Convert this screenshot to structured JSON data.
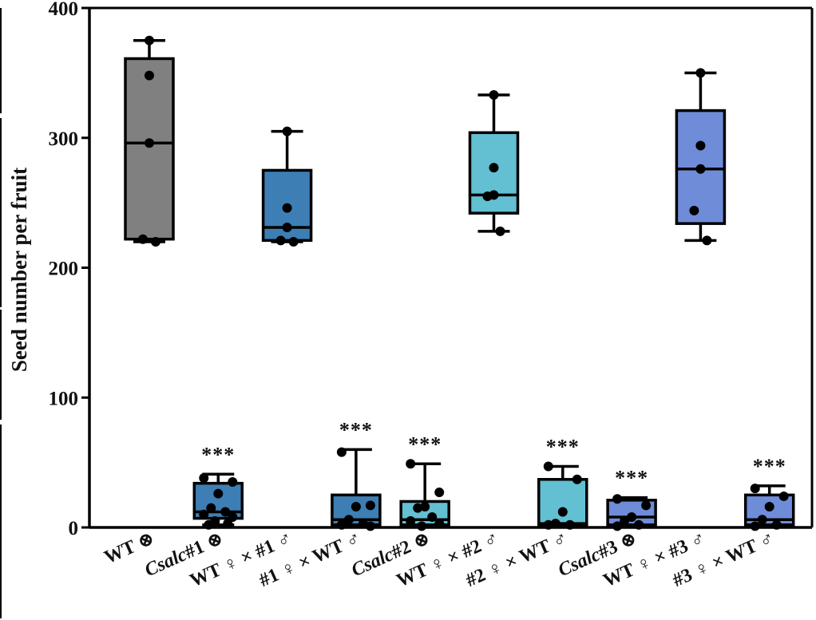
{
  "chart_data": {
    "type": "box",
    "ylabel": "Seed number per fruit",
    "ylim": [
      0,
      400
    ],
    "yticks": [
      0,
      100,
      200,
      300,
      400
    ],
    "categories": [
      {
        "pre": "WT ⊗",
        "ital": "",
        "post": ""
      },
      {
        "pre": "",
        "ital": "Csalc",
        "post": "#1 ⊗"
      },
      {
        "pre": "WT ♀ × #1 ♂",
        "ital": "",
        "post": ""
      },
      {
        "pre": "#1 ♀ × WT ♂",
        "ital": "",
        "post": ""
      },
      {
        "pre": "",
        "ital": "Csalc",
        "post": "#2 ⊗"
      },
      {
        "pre": "WT ♀ × #2 ♂",
        "ital": "",
        "post": ""
      },
      {
        "pre": "#2 ♀ × WT ♂",
        "ital": "",
        "post": ""
      },
      {
        "pre": "",
        "ital": "Csalc",
        "post": "#3 ⊗"
      },
      {
        "pre": "WT ♀ × #3 ♂",
        "ital": "",
        "post": ""
      },
      {
        "pre": "#3 ♀ × WT ♂",
        "ital": "",
        "post": ""
      }
    ],
    "boxes": [
      {
        "slot": 0,
        "color": "#808080",
        "min": 220,
        "q1": 222,
        "median": 296,
        "q3": 361,
        "max": 375,
        "points": [
          375,
          348,
          296,
          222,
          220
        ],
        "sig": ""
      },
      {
        "slot": 1,
        "color": "#3d7fb4",
        "min": 2,
        "q1": 7,
        "median": 12,
        "q3": 34,
        "max": 41,
        "points": [
          38,
          35,
          26,
          15,
          12,
          10,
          8,
          5,
          3,
          2
        ],
        "sig": "***"
      },
      {
        "slot": 2,
        "color": "#3d7fb4",
        "min": 220,
        "q1": 221,
        "median": 231,
        "q3": 275,
        "max": 305,
        "points": [
          305,
          246,
          231,
          221,
          220
        ],
        "sig": ""
      },
      {
        "slot": 3,
        "color": "#3d7fb4",
        "min": 1,
        "q1": 2,
        "median": 6,
        "q3": 25,
        "max": 60,
        "points": [
          58,
          17,
          16,
          6,
          3,
          2,
          1
        ],
        "sig": "***"
      },
      {
        "slot": 4,
        "color": "#63bfd2",
        "min": 1,
        "q1": 2,
        "median": 6,
        "q3": 20,
        "max": 49,
        "points": [
          49,
          27,
          16,
          15,
          8,
          5,
          3,
          1
        ],
        "sig": "***"
      },
      {
        "slot": 5,
        "color": "#63bfd2",
        "min": 228,
        "q1": 242,
        "median": 256,
        "q3": 304,
        "max": 333,
        "points": [
          333,
          277,
          256,
          255,
          228
        ],
        "sig": ""
      },
      {
        "slot": 6,
        "color": "#63bfd2",
        "min": 1,
        "q1": 2,
        "median": 3,
        "q3": 37,
        "max": 47,
        "points": [
          47,
          37,
          12,
          3,
          2,
          2
        ],
        "sig": "***"
      },
      {
        "slot": 7,
        "color": "#6f8cd8",
        "min": 1,
        "q1": 2,
        "median": 8,
        "q3": 21,
        "max": 23,
        "points": [
          22,
          17,
          8,
          5,
          2,
          1
        ],
        "sig": "***"
      },
      {
        "slot": 8,
        "color": "#6f8cd8",
        "min": 221,
        "q1": 234,
        "median": 276,
        "q3": 321,
        "max": 350,
        "points": [
          350,
          294,
          276,
          244,
          221
        ],
        "sig": ""
      },
      {
        "slot": 9,
        "color": "#6f8cd8",
        "min": 1,
        "q1": 2,
        "median": 6,
        "q3": 25,
        "max": 32,
        "points": [
          30,
          24,
          16,
          6,
          2,
          1
        ],
        "sig": "***"
      }
    ]
  }
}
